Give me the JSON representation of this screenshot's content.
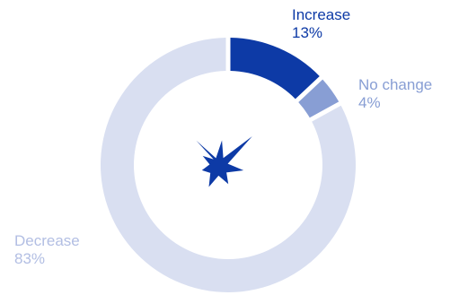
{
  "chart_data": {
    "type": "pie",
    "variant": "donut",
    "categories": [
      "Increase",
      "No change",
      "Decrease"
    ],
    "values": [
      13,
      4,
      83
    ],
    "value_labels": [
      "13%",
      "4%",
      "83%"
    ],
    "title": "",
    "legend": "none",
    "colors": [
      "#0d3aa6",
      "#889ed4",
      "#d9dff1"
    ],
    "label_colors": [
      "#0d3aa6",
      "#889ed4",
      "#b2bee3"
    ],
    "center_icon": "starburst-icon",
    "center_icon_color": "#0d3aa6"
  }
}
